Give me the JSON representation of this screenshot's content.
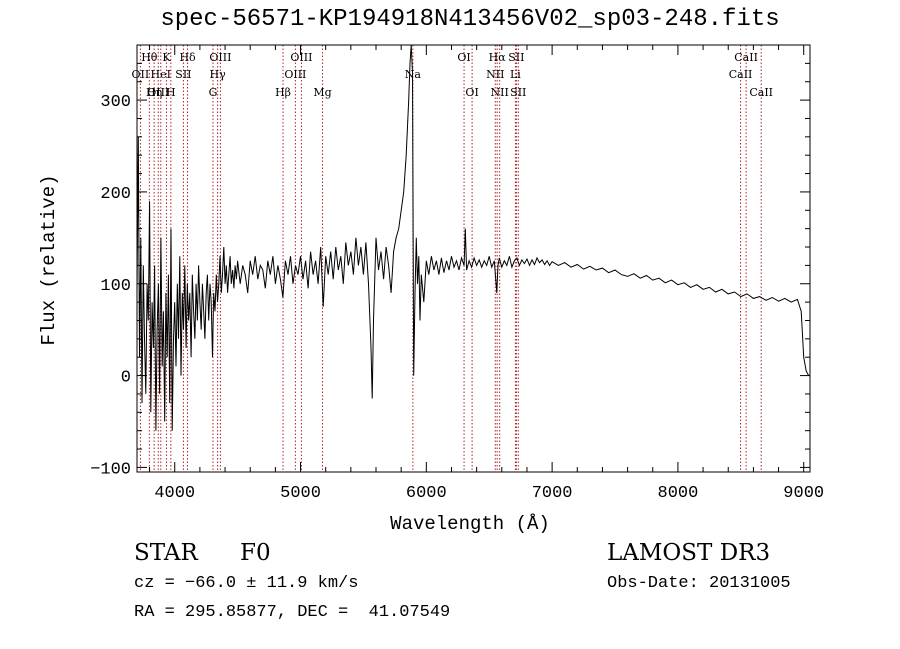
{
  "chart_data": {
    "type": "line",
    "title": "spec-56571-KP194918N413456V02_sp03-248.fits",
    "xlabel": "Wavelength (Å)",
    "ylabel": "Flux (relative)",
    "xlim": [
      3700,
      9050
    ],
    "ylim": [
      -105,
      360
    ],
    "xticks": [
      4000,
      5000,
      6000,
      7000,
      8000,
      9000
    ],
    "xtick_labels": [
      "4000",
      "5000",
      "6000",
      "7000",
      "8000",
      "9000"
    ],
    "yticks": [
      -100,
      0,
      100,
      200,
      300
    ],
    "ytick_labels": [
      "−100",
      "0",
      "100",
      "200",
      "300"
    ],
    "grid": false,
    "series": [
      {
        "name": "flux",
        "points": [
          [
            3700,
            90
          ],
          [
            3710,
            260
          ],
          [
            3720,
            20
          ],
          [
            3730,
            150
          ],
          [
            3740,
            -30
          ],
          [
            3750,
            120
          ],
          [
            3760,
            40
          ],
          [
            3770,
            -20
          ],
          [
            3780,
            100
          ],
          [
            3790,
            60
          ],
          [
            3800,
            190
          ],
          [
            3810,
            -40
          ],
          [
            3820,
            80
          ],
          [
            3830,
            30
          ],
          [
            3840,
            120
          ],
          [
            3850,
            -60
          ],
          [
            3860,
            50
          ],
          [
            3870,
            100
          ],
          [
            3880,
            -20
          ],
          [
            3890,
            150
          ],
          [
            3900,
            10
          ],
          [
            3910,
            70
          ],
          [
            3920,
            -50
          ],
          [
            3930,
            90
          ],
          [
            3940,
            20
          ],
          [
            3950,
            110
          ],
          [
            3960,
            -30
          ],
          [
            3970,
            160
          ],
          [
            3980,
            -60
          ],
          [
            3990,
            40
          ],
          [
            4000,
            80
          ],
          [
            4010,
            10
          ],
          [
            4020,
            100
          ],
          [
            4030,
            40
          ],
          [
            4040,
            130
          ],
          [
            4050,
            0
          ],
          [
            4060,
            90
          ],
          [
            4070,
            50
          ],
          [
            4080,
            120
          ],
          [
            4090,
            30
          ],
          [
            4100,
            100
          ],
          [
            4110,
            60
          ],
          [
            4120,
            90
          ],
          [
            4130,
            20
          ],
          [
            4140,
            110
          ],
          [
            4150,
            70
          ],
          [
            4160,
            40
          ],
          [
            4170,
            100
          ],
          [
            4180,
            60
          ],
          [
            4190,
            120
          ],
          [
            4200,
            80
          ],
          [
            4210,
            50
          ],
          [
            4220,
            100
          ],
          [
            4230,
            70
          ],
          [
            4240,
            40
          ],
          [
            4250,
            90
          ],
          [
            4260,
            110
          ],
          [
            4270,
            60
          ],
          [
            4280,
            100
          ],
          [
            4290,
            80
          ],
          [
            4300,
            20
          ],
          [
            4310,
            90
          ],
          [
            4320,
            70
          ],
          [
            4330,
            110
          ],
          [
            4340,
            80
          ],
          [
            4350,
            100
          ],
          [
            4360,
            130
          ],
          [
            4370,
            90
          ],
          [
            4380,
            110
          ],
          [
            4390,
            140
          ],
          [
            4400,
            100
          ],
          [
            4410,
            120
          ],
          [
            4420,
            90
          ],
          [
            4430,
            110
          ],
          [
            4440,
            130
          ],
          [
            4450,
            100
          ],
          [
            4460,
            115
          ],
          [
            4470,
            95
          ],
          [
            4480,
            120
          ],
          [
            4490,
            105
          ],
          [
            4500,
            125
          ],
          [
            4520,
            100
          ],
          [
            4540,
            120
          ],
          [
            4560,
            110
          ],
          [
            4580,
            90
          ],
          [
            4600,
            125
          ],
          [
            4620,
            110
          ],
          [
            4640,
            130
          ],
          [
            4660,
            105
          ],
          [
            4680,
            120
          ],
          [
            4700,
            115
          ],
          [
            4720,
            95
          ],
          [
            4740,
            125
          ],
          [
            4760,
            110
          ],
          [
            4780,
            130
          ],
          [
            4800,
            100
          ],
          [
            4820,
            120
          ],
          [
            4840,
            105
          ],
          [
            4860,
            85
          ],
          [
            4880,
            125
          ],
          [
            4900,
            110
          ],
          [
            4920,
            130
          ],
          [
            4940,
            100
          ],
          [
            4960,
            120
          ],
          [
            4980,
            110
          ],
          [
            5000,
            130
          ],
          [
            5020,
            105
          ],
          [
            5040,
            125
          ],
          [
            5060,
            95
          ],
          [
            5080,
            135
          ],
          [
            5100,
            110
          ],
          [
            5120,
            125
          ],
          [
            5140,
            100
          ],
          [
            5160,
            140
          ],
          [
            5180,
            75
          ],
          [
            5200,
            130
          ],
          [
            5220,
            110
          ],
          [
            5240,
            135
          ],
          [
            5260,
            105
          ],
          [
            5280,
            140
          ],
          [
            5300,
            115
          ],
          [
            5320,
            130
          ],
          [
            5340,
            100
          ],
          [
            5360,
            145
          ],
          [
            5380,
            120
          ],
          [
            5400,
            135
          ],
          [
            5420,
            110
          ],
          [
            5440,
            150
          ],
          [
            5460,
            120
          ],
          [
            5480,
            140
          ],
          [
            5500,
            110
          ],
          [
            5520,
            145
          ],
          [
            5540,
            100
          ],
          [
            5560,
            30
          ],
          [
            5570,
            -25
          ],
          [
            5580,
            60
          ],
          [
            5600,
            150
          ],
          [
            5620,
            115
          ],
          [
            5640,
            135
          ],
          [
            5660,
            105
          ],
          [
            5680,
            140
          ],
          [
            5700,
            120
          ],
          [
            5720,
            90
          ],
          [
            5740,
            135
          ],
          [
            5760,
            150
          ],
          [
            5780,
            160
          ],
          [
            5800,
            180
          ],
          [
            5820,
            200
          ],
          [
            5840,
            240
          ],
          [
            5860,
            300
          ],
          [
            5870,
            340
          ],
          [
            5880,
            360
          ],
          [
            5890,
            330
          ],
          [
            5900,
            0
          ],
          [
            5910,
            90
          ],
          [
            5920,
            150
          ],
          [
            5930,
            100
          ],
          [
            5940,
            130
          ],
          [
            5950,
            60
          ],
          [
            5960,
            110
          ],
          [
            5980,
            80
          ],
          [
            6000,
            125
          ],
          [
            6020,
            110
          ],
          [
            6040,
            130
          ],
          [
            6060,
            115
          ],
          [
            6080,
            125
          ],
          [
            6100,
            110
          ],
          [
            6120,
            128
          ],
          [
            6140,
            112
          ],
          [
            6160,
            125
          ],
          [
            6180,
            115
          ],
          [
            6200,
            130
          ],
          [
            6220,
            118
          ],
          [
            6240,
            125
          ],
          [
            6260,
            115
          ],
          [
            6280,
            128
          ],
          [
            6300,
            120
          ],
          [
            6310,
            160
          ],
          [
            6320,
            115
          ],
          [
            6340,
            125
          ],
          [
            6360,
            118
          ],
          [
            6380,
            128
          ],
          [
            6400,
            120
          ],
          [
            6420,
            126
          ],
          [
            6440,
            118
          ],
          [
            6460,
            125
          ],
          [
            6480,
            120
          ],
          [
            6500,
            130
          ],
          [
            6520,
            118
          ],
          [
            6540,
            125
          ],
          [
            6560,
            90
          ],
          [
            6570,
            120
          ],
          [
            6580,
            128
          ],
          [
            6600,
            118
          ],
          [
            6620,
            125
          ],
          [
            6640,
            120
          ],
          [
            6660,
            130
          ],
          [
            6680,
            118
          ],
          [
            6700,
            125
          ],
          [
            6720,
            128
          ],
          [
            6740,
            120
          ],
          [
            6760,
            126
          ],
          [
            6780,
            122
          ],
          [
            6800,
            127
          ],
          [
            6820,
            120
          ],
          [
            6840,
            126
          ],
          [
            6860,
            121
          ],
          [
            6880,
            128
          ],
          [
            6900,
            123
          ],
          [
            6920,
            126
          ],
          [
            6940,
            121
          ],
          [
            6960,
            125
          ],
          [
            6980,
            120
          ],
          [
            7000,
            124
          ],
          [
            7050,
            120
          ],
          [
            7100,
            123
          ],
          [
            7150,
            118
          ],
          [
            7200,
            121
          ],
          [
            7250,
            116
          ],
          [
            7300,
            119
          ],
          [
            7350,
            115
          ],
          [
            7400,
            117
          ],
          [
            7450,
            112
          ],
          [
            7500,
            115
          ],
          [
            7550,
            110
          ],
          [
            7600,
            108
          ],
          [
            7650,
            111
          ],
          [
            7700,
            106
          ],
          [
            7750,
            109
          ],
          [
            7800,
            104
          ],
          [
            7850,
            106
          ],
          [
            7900,
            101
          ],
          [
            7950,
            104
          ],
          [
            8000,
            99
          ],
          [
            8050,
            101
          ],
          [
            8100,
            96
          ],
          [
            8150,
            99
          ],
          [
            8200,
            94
          ],
          [
            8250,
            96
          ],
          [
            8300,
            91
          ],
          [
            8350,
            94
          ],
          [
            8400,
            89
          ],
          [
            8450,
            91
          ],
          [
            8500,
            86
          ],
          [
            8550,
            89
          ],
          [
            8600,
            84
          ],
          [
            8650,
            86
          ],
          [
            8700,
            82
          ],
          [
            8750,
            85
          ],
          [
            8800,
            81
          ],
          [
            8850,
            84
          ],
          [
            8900,
            80
          ],
          [
            8950,
            83
          ],
          [
            8980,
            70
          ],
          [
            9000,
            20
          ],
          [
            9020,
            5
          ],
          [
            9040,
            0
          ]
        ]
      }
    ],
    "lines": [
      {
        "label": "Hθ",
        "x": 3798,
        "row": 1
      },
      {
        "label": "OII",
        "x": 3727,
        "row": 2
      },
      {
        "label": "OIII",
        "x": 3869,
        "row": 3
      },
      {
        "label": "HeI",
        "x": 3889,
        "row": 2
      },
      {
        "label": "Hη",
        "x": 3836,
        "row": 3
      },
      {
        "label": "K",
        "x": 3934,
        "row": 1
      },
      {
        "label": "H",
        "x": 3969,
        "row": 3
      },
      {
        "label": "Hδ",
        "x": 4102,
        "row": 1
      },
      {
        "label": "SII",
        "x": 4069,
        "row": 2
      },
      {
        "label": "OIII",
        "x": 4363,
        "row": 1
      },
      {
        "label": "Hγ",
        "x": 4341,
        "row": 2
      },
      {
        "label": "G",
        "x": 4304,
        "row": 3
      },
      {
        "label": "Hβ",
        "x": 4861,
        "row": 3
      },
      {
        "label": "OIII",
        "x": 5007,
        "row": 1
      },
      {
        "label": "OIII",
        "x": 4959,
        "row": 2
      },
      {
        "label": "Mg",
        "x": 5175,
        "row": 3
      },
      {
        "label": "Na",
        "x": 5893,
        "row": 2
      },
      {
        "label": "OI",
        "x": 6300,
        "row": 1
      },
      {
        "label": "OI",
        "x": 6364,
        "row": 3
      },
      {
        "label": "Hα",
        "x": 6563,
        "row": 1
      },
      {
        "label": "NII",
        "x": 6548,
        "row": 2
      },
      {
        "label": "NII",
        "x": 6583,
        "row": 3
      },
      {
        "label": "SII",
        "x": 6716,
        "row": 1
      },
      {
        "label": "Li",
        "x": 6708,
        "row": 2
      },
      {
        "label": "SII",
        "x": 6731,
        "row": 3
      },
      {
        "label": "CaII",
        "x": 8542,
        "row": 1
      },
      {
        "label": "CaII",
        "x": 8498,
        "row": 2
      },
      {
        "label": "CaII",
        "x": 8662,
        "row": 3
      }
    ]
  },
  "info": {
    "object_class": "STAR",
    "subclass": "F0",
    "survey": "LAMOST DR3",
    "redshift": "cz = −66.0 ± 11.9 km/s",
    "obs_date": "Obs-Date: 20131005",
    "coords": "RA = 295.85877, DEC =  41.07549"
  },
  "colors": {
    "spectrum": "#000000",
    "line_marker": "#b22222",
    "text": "#000000"
  }
}
